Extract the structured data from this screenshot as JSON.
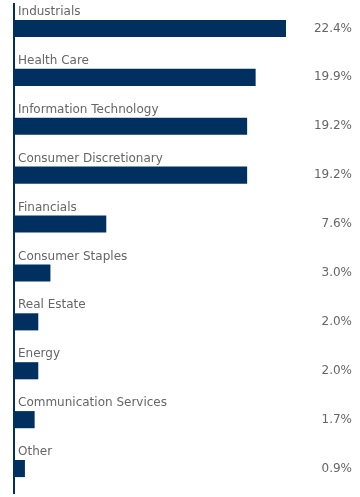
{
  "chart_data": {
    "type": "bar",
    "orientation": "horizontal",
    "categories": [
      "Industrials",
      "Health Care",
      "Information Technology",
      "Consumer Discretionary",
      "Financials",
      "Consumer Staples",
      "Real Estate",
      "Energy",
      "Communication Services",
      "Other"
    ],
    "values": [
      22.4,
      19.9,
      19.2,
      19.2,
      7.6,
      3.0,
      2.0,
      2.0,
      1.7,
      0.9
    ],
    "value_labels": [
      "22.4%",
      "19.9%",
      "19.2%",
      "19.2%",
      "7.6%",
      "3.0%",
      "2.0%",
      "2.0%",
      "1.7%",
      "0.9%"
    ],
    "data_labels": true,
    "color": "#003060",
    "xlim": [
      0,
      28
    ],
    "tick_labels": false,
    "grid": false
  }
}
